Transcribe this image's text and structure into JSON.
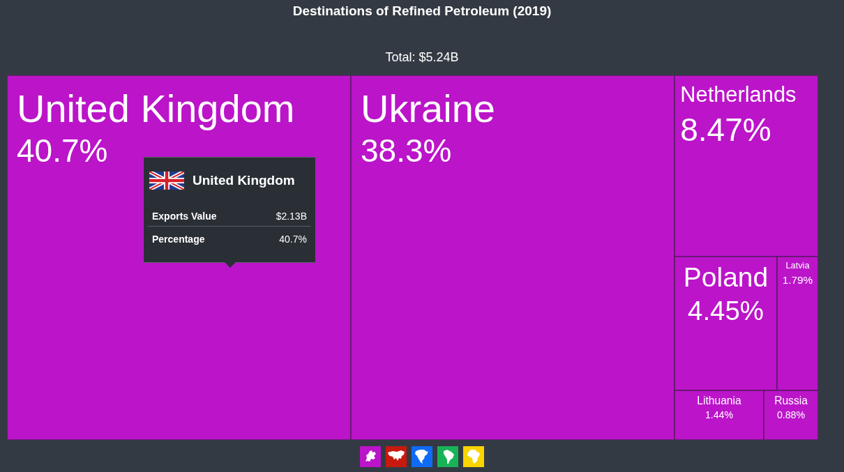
{
  "chart_data": {
    "type": "other",
    "title": "Destinations of Refined Petroleum (2019)",
    "subtitle": "Total: $5.24B",
    "categories": [
      "United Kingdom",
      "Ukraine",
      "Netherlands",
      "Poland",
      "Latvia",
      "Lithuania",
      "Russia"
    ],
    "values": [
      40.7,
      38.3,
      8.47,
      4.45,
      1.79,
      1.44,
      0.88
    ],
    "value_labels": [
      "40.7%",
      "38.3%",
      "8.47%",
      "4.45%",
      "1.79%",
      "1.44%",
      "0.88%"
    ],
    "colors": [
      "#bb14c9",
      "#bb14c9",
      "#bb14c9",
      "#bb14c9",
      "#bb14c9",
      "#bb14c9",
      "#bb14c9"
    ],
    "annotations": [
      "United Kingdom",
      "Exports Value",
      "$2.13B",
      "Percentage",
      "40.7%"
    ]
  }
}
